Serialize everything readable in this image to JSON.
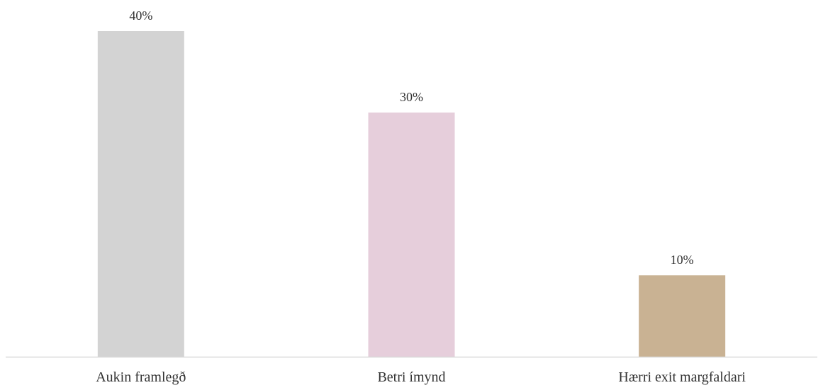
{
  "chart_data": {
    "type": "bar",
    "categories": [
      "Aukin framlegð",
      "Betri ímynd",
      "Hærri exit margfaldari"
    ],
    "values": [
      40,
      30,
      10
    ],
    "data_labels": [
      "40%",
      "30%",
      "10%"
    ],
    "unit": "%",
    "ylim": [
      0,
      40
    ],
    "grid": false,
    "legend": "none",
    "title": "",
    "xlabel": "",
    "ylabel": "",
    "colors": [
      "#d3d3d3",
      "#e6cedb",
      "#c9b293"
    ]
  }
}
